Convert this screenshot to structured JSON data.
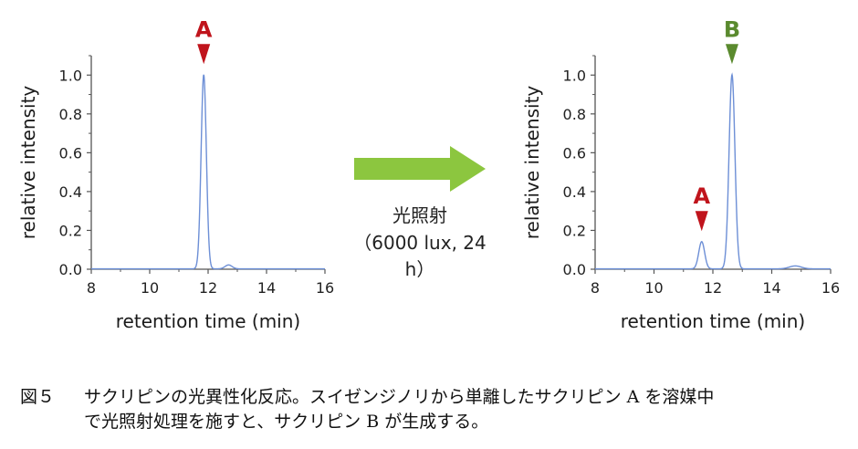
{
  "chart_data": [
    {
      "type": "line",
      "xlabel": "retention time (min)",
      "ylabel": "relative intensity",
      "xlim": [
        8,
        16
      ],
      "ylim": [
        0,
        1.1
      ],
      "xticks": [
        "8",
        "10",
        "12",
        "14",
        "16"
      ],
      "yticks": [
        "0.0",
        "0.2",
        "0.4",
        "0.6",
        "0.8",
        "1.0"
      ],
      "line_color": "#6d8fd6",
      "peaks": [
        {
          "center": 11.85,
          "height": 1.0,
          "width": 0.09
        },
        {
          "center": 12.7,
          "height": 0.02,
          "width": 0.12
        }
      ],
      "markers": [
        {
          "label": "A",
          "x": 11.85,
          "color": "#c0141c"
        }
      ]
    },
    {
      "type": "line",
      "xlabel": "retention time (min)",
      "ylabel": "relative intensity",
      "xlim": [
        8,
        16
      ],
      "ylim": [
        0,
        1.1
      ],
      "xticks": [
        "8",
        "10",
        "12",
        "14",
        "16"
      ],
      "yticks": [
        "0.0",
        "0.2",
        "0.4",
        "0.6",
        "0.8",
        "1.0"
      ],
      "line_color": "#6d8fd6",
      "peaks": [
        {
          "center": 11.62,
          "height": 0.14,
          "width": 0.1
        },
        {
          "center": 12.65,
          "height": 1.0,
          "width": 0.1
        },
        {
          "center": 14.8,
          "height": 0.015,
          "width": 0.2
        }
      ],
      "markers": [
        {
          "label": "A",
          "x": 11.62,
          "color": "#c0141c"
        },
        {
          "label": "B",
          "x": 12.65,
          "color": "#5a8a2e"
        }
      ]
    }
  ],
  "arrow": {
    "color": "#8cc63f",
    "label": "光照射",
    "condition": "（6000 lux, 24 h）"
  },
  "caption": {
    "figure_number": "図５",
    "line1": "サクリピンの光異性化反応。スイゼンジノリから単離したサクリピン A を溶媒中",
    "line2": "で光照射処理を施すと、サクリピン B が生成する。"
  }
}
